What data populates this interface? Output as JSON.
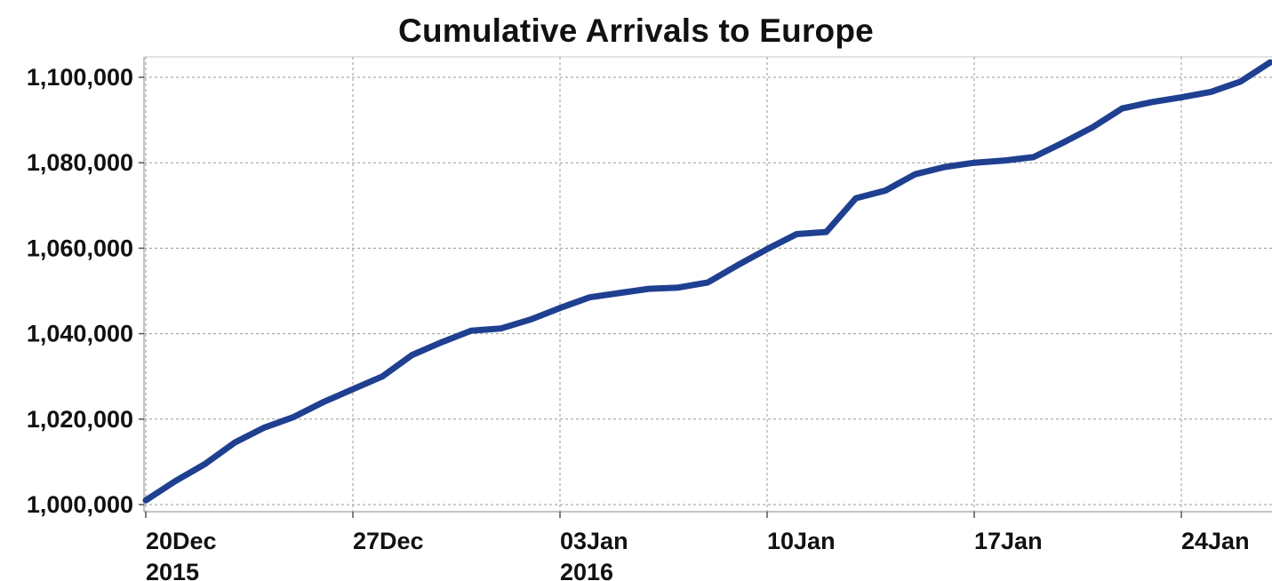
{
  "chart_data": {
    "type": "line",
    "title": "Cumulative Arrivals to Europe",
    "xlabel": "",
    "ylabel": "",
    "x_range": [
      "2015-12-20",
      "2016-01-25"
    ],
    "ylim": [
      1000000,
      1100000
    ],
    "y_ticks": [
      1000000,
      1020000,
      1040000,
      1060000,
      1080000,
      1100000
    ],
    "y_tick_labels": [
      "1,000,000",
      "1,020,000",
      "1,040,000",
      "1,060,000",
      "1,080,000",
      "1,100,000"
    ],
    "x_ticks": [
      {
        "date": "2015-12-20",
        "label": "20Dec",
        "sublabel": "2015"
      },
      {
        "date": "2015-12-27",
        "label": "27Dec",
        "sublabel": ""
      },
      {
        "date": "2016-01-03",
        "label": "03Jan",
        "sublabel": "2016"
      },
      {
        "date": "2016-01-10",
        "label": "10Jan",
        "sublabel": ""
      },
      {
        "date": "2016-01-17",
        "label": "17Jan",
        "sublabel": ""
      },
      {
        "date": "2016-01-24",
        "label": "24Jan",
        "sublabel": ""
      }
    ],
    "grid": true,
    "line_color": "#1f3f91",
    "series": [
      {
        "name": "",
        "x": [
          "2015-12-20",
          "2015-12-21",
          "2015-12-22",
          "2015-12-23",
          "2015-12-24",
          "2015-12-25",
          "2015-12-26",
          "2015-12-27",
          "2015-12-28",
          "2015-12-29",
          "2015-12-30",
          "2015-12-31",
          "2016-01-01",
          "2016-01-02",
          "2016-01-03",
          "2016-01-04",
          "2016-01-05",
          "2016-01-06",
          "2016-01-07",
          "2016-01-08",
          "2016-01-09",
          "2016-01-10",
          "2016-01-11",
          "2016-01-12",
          "2016-01-13",
          "2016-01-14",
          "2016-01-15",
          "2016-01-16",
          "2016-01-17",
          "2016-01-18",
          "2016-01-19",
          "2016-01-20",
          "2016-01-21",
          "2016-01-22",
          "2016-01-23",
          "2016-01-24",
          "2016-01-25",
          "2016-01-26"
        ],
        "values": [
          1001000,
          1005500,
          1009500,
          1014500,
          1018000,
          1020500,
          1024000,
          1027000,
          1030000,
          1035000,
          1038000,
          1040700,
          1041200,
          1043300,
          1046000,
          1048500,
          1049500,
          1050500,
          1050800,
          1052000,
          1056000,
          1059800,
          1063300,
          1063800,
          1071700,
          1073500,
          1077300,
          1079000,
          1080000,
          1080500,
          1081300,
          1084700,
          1088300,
          1092700,
          1094200,
          1095300,
          1096600,
          1099000
        ]
      }
    ],
    "end_point": {
      "x": "2016-01-27",
      "value": 1103500
    }
  }
}
